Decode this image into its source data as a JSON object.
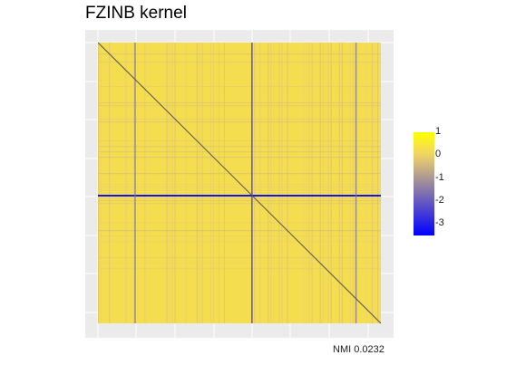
{
  "chart_data": {
    "type": "heatmap",
    "title": "FZINB kernel",
    "caption": "NMI  0.0232",
    "xlabel": "",
    "ylabel": "",
    "grid": true,
    "legend": {
      "position": "right",
      "min": -3.5,
      "max": 1,
      "ticks": [
        "1",
        "0",
        "-1",
        "-2",
        "-3"
      ],
      "tick_values": [
        1,
        0,
        -1,
        -2,
        -3
      ],
      "colors": {
        "high": "#ffff00",
        "mid": "#f0d36a",
        "low": "#0000ff"
      }
    },
    "matrix_size": 310,
    "diagonal_value": 1,
    "typical_value": 0.25,
    "highlight_rows": [
      {
        "index": 168,
        "value": -3.2
      }
    ],
    "highlight_columns": [
      {
        "index": 168,
        "value": -2.8
      },
      {
        "index": 40,
        "value": -1.6
      },
      {
        "index": 282,
        "value": -1.6
      }
    ]
  }
}
